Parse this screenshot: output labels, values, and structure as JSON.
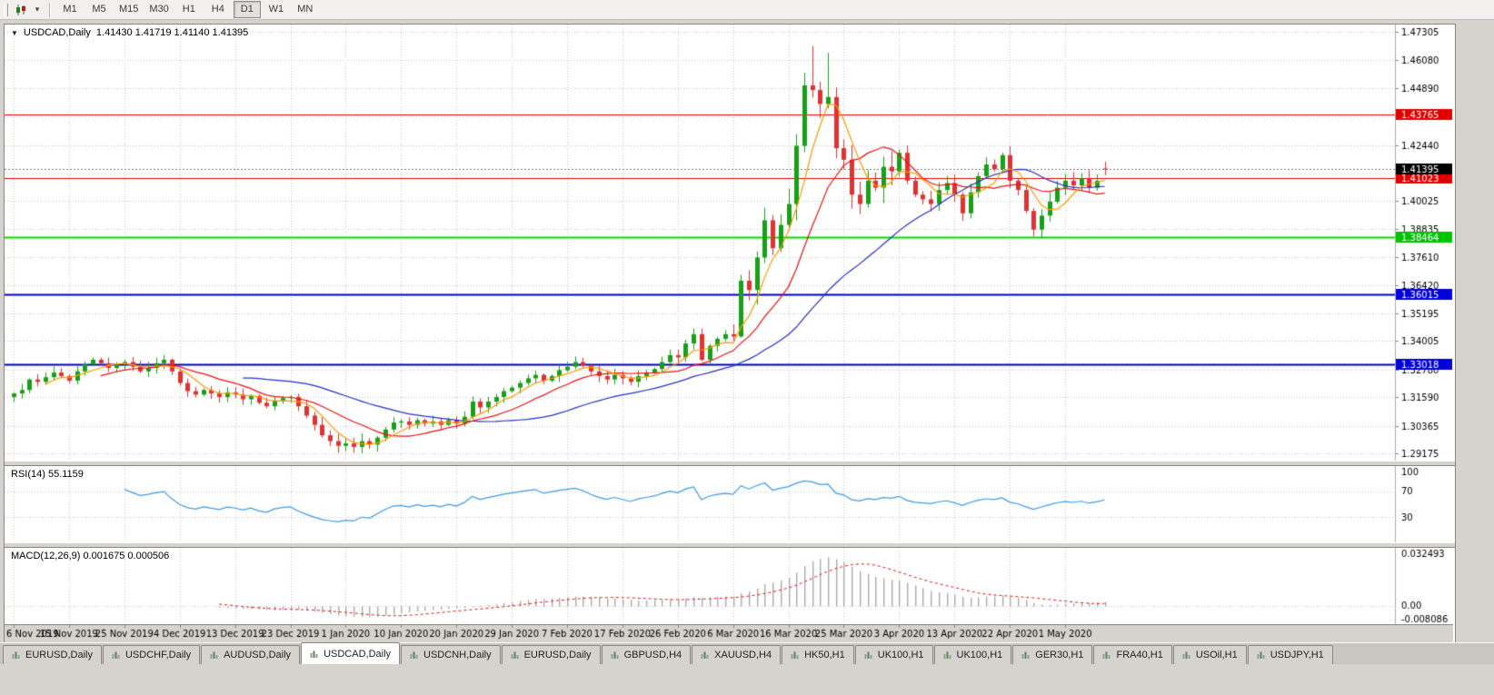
{
  "toolbar": {
    "timeframes": [
      "M1",
      "M5",
      "M15",
      "M30",
      "H1",
      "H4",
      "D1",
      "W1",
      "MN"
    ],
    "active_timeframe": "D1"
  },
  "icons": {
    "collapse_caret": "▼",
    "caret_down": "▾"
  },
  "chart_header": {
    "symbol_period": "USDCAD,Daily",
    "ohlc": "1.41430 1.41719 1.41140 1.41395"
  },
  "chart_data": {
    "type": "candlestick",
    "symbol": "USDCAD",
    "period": "Daily",
    "title": "USDCAD,Daily",
    "current_ohlc": {
      "open": 1.4143,
      "high": 1.41719,
      "low": 1.4114,
      "close": 1.41395
    },
    "y_axis": {
      "min": 1.29175,
      "max": 1.47305,
      "ticks": [
        1.47305,
        1.4608,
        1.4489,
        1.43665,
        1.4244,
        1.41215,
        1.40025,
        1.38835,
        1.3761,
        1.3642,
        1.35195,
        1.34005,
        1.3278,
        1.3159,
        1.30365,
        1.29175
      ]
    },
    "x_labels": [
      "6 Nov 2019",
      "15 Nov 2019",
      "25 Nov 2019",
      "4 Dec 2019",
      "13 Dec 2019",
      "23 Dec 2019",
      "1 Jan 2020",
      "10 Jan 2020",
      "20 Jan 2020",
      "29 Jan 2020",
      "7 Feb 2020",
      "17 Feb 2020",
      "26 Feb 2020",
      "6 Mar 2020",
      "16 Mar 2020",
      "25 Mar 2020",
      "3 Apr 2020",
      "13 Apr 2020",
      "22 Apr 2020",
      "1 May 2020"
    ],
    "candles_per_label": 7,
    "first_open": 1.316,
    "closes": [
      1.3175,
      1.319,
      1.3235,
      1.3225,
      1.3245,
      1.3265,
      1.325,
      1.323,
      1.327,
      1.33,
      1.332,
      1.3305,
      1.3285,
      1.33,
      1.331,
      1.329,
      1.327,
      1.3285,
      1.3305,
      1.332,
      1.327,
      1.322,
      1.3185,
      1.317,
      1.319,
      1.3175,
      1.316,
      1.318,
      1.317,
      1.315,
      1.3165,
      1.3135,
      1.312,
      1.3145,
      1.3155,
      1.316,
      1.312,
      1.308,
      1.304,
      1.2995,
      1.297,
      1.295,
      1.296,
      1.2945,
      1.297,
      1.2955,
      1.2985,
      1.302,
      1.305,
      1.3055,
      1.304,
      1.306,
      1.3045,
      1.3055,
      1.304,
      1.306,
      1.3045,
      1.3075,
      1.314,
      1.3115,
      1.314,
      1.316,
      1.3185,
      1.32,
      1.322,
      1.324,
      1.3255,
      1.323,
      1.325,
      1.3275,
      1.329,
      1.331,
      1.3295,
      1.327,
      1.325,
      1.3235,
      1.3255,
      1.324,
      1.3225,
      1.325,
      1.3265,
      1.328,
      1.331,
      1.334,
      1.333,
      1.339,
      1.343,
      1.332,
      1.338,
      1.341,
      1.343,
      1.342,
      1.366,
      1.362,
      1.376,
      1.392,
      1.38,
      1.39,
      1.399,
      1.424,
      1.45,
      1.448,
      1.442,
      1.445,
      1.423,
      1.418,
      1.403,
      1.399,
      1.409,
      1.406,
      1.415,
      1.413,
      1.421,
      1.409,
      1.403,
      1.401,
      1.399,
      1.405,
      1.408,
      1.403,
      1.395,
      1.404,
      1.411,
      1.416,
      1.414,
      1.42,
      1.409,
      1.405,
      1.396,
      1.388,
      1.394,
      1.4,
      1.406,
      1.409,
      1.407,
      1.41,
      1.406,
      1.409,
      1.41395
    ],
    "wick_overrides": [
      {
        "i": 92,
        "h": 1.3685,
        "l": 1.3415
      },
      {
        "i": 101,
        "h": 1.4669
      },
      {
        "i": 103,
        "h": 1.464
      },
      {
        "i": 129,
        "l": 1.385
      },
      {
        "i": 138,
        "o": 1.4143,
        "h": 1.41719,
        "l": 1.4114,
        "c": 1.41395
      }
    ],
    "moving_averages": [
      {
        "period": 30,
        "color": "#2630c8"
      },
      {
        "period": 12,
        "color": "#ee1111"
      },
      {
        "period": 5,
        "color": "#ff9900"
      }
    ],
    "h_lines": [
      {
        "price": 1.43765,
        "color": "#e00000",
        "width": 1,
        "tag_bg": "#e00000"
      },
      {
        "price": 1.41023,
        "color": "#e00000",
        "width": 1,
        "tag_bg": "#e00000"
      },
      {
        "price": 1.38464,
        "color": "#00dd00",
        "width": 2,
        "tag_bg": "#00c400"
      },
      {
        "price": 1.36015,
        "color": "#0000cc",
        "width": 2,
        "tag_bg": "#0000dd"
      },
      {
        "price": 1.33018,
        "color": "#0000cc",
        "width": 2,
        "tag_bg": "#0000dd"
      }
    ],
    "current_price_line": {
      "price": 1.41395,
      "tag_bg": "#000000"
    },
    "bull_color": "#18a018",
    "bear_color": "#e03232",
    "grid_color": "#c6c6c6",
    "rsi": {
      "period": 14,
      "display": "RSI(14) 55.1159",
      "value": 55.1159,
      "levels": [
        100,
        70,
        30
      ],
      "color": "#3d9be9"
    },
    "macd": {
      "fast": 12,
      "slow": 26,
      "signal": 9,
      "display": "MACD(12,26,9) 0.001675 0.000506",
      "values": [
        0.001675,
        0.000506
      ],
      "y_max": 0.032493,
      "y_min": -0.008086,
      "scale_labels": [
        "0.032493",
        "0.00",
        "-0.008086"
      ],
      "hist_color": "#ababab",
      "signal_color": "#ee1111"
    }
  },
  "tabs": {
    "active_index": 3,
    "items": [
      "EURUSD,Daily",
      "USDCHF,Daily",
      "AUDUSD,Daily",
      "USDCAD,Daily",
      "USDCNH,Daily",
      "EURUSD,Daily",
      "GBPUSD,H4",
      "XAUUSD,H4",
      "HK50,H1",
      "UK100,H1",
      "UK100,H1",
      "GER30,H1",
      "FRA40,H1",
      "USOil,H1",
      "USDJPY,H1"
    ]
  }
}
